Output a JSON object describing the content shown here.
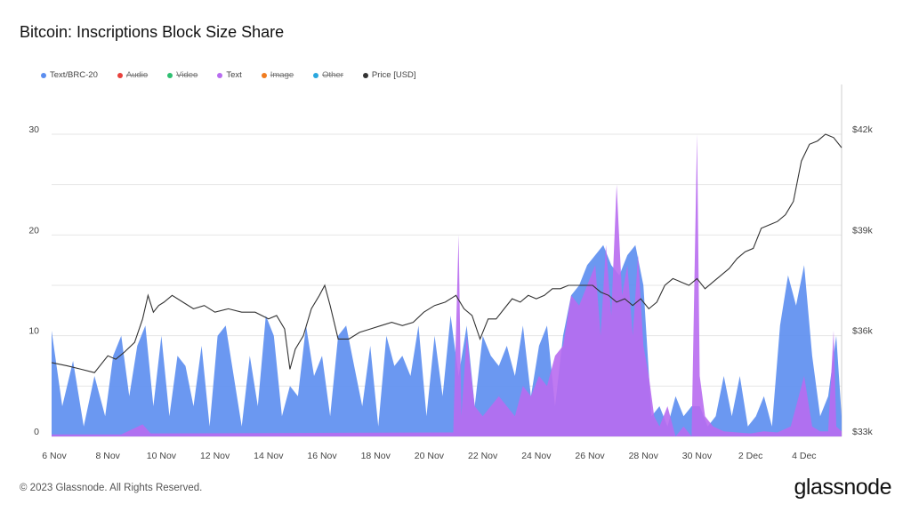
{
  "title": "Bitcoin: Inscriptions Block Size Share",
  "footer": "© 2023 Glassnode. All Rights Reserved.",
  "brand": "glassnode",
  "legend": [
    {
      "label": "Text/BRC-20",
      "color": "#5b8def",
      "enabled": true
    },
    {
      "label": "Audio",
      "color": "#e8413c",
      "enabled": false
    },
    {
      "label": "Video",
      "color": "#2fbf71",
      "enabled": false
    },
    {
      "label": "Text",
      "color": "#b86cf0",
      "enabled": true
    },
    {
      "label": "Image",
      "color": "#f07c1f",
      "enabled": false
    },
    {
      "label": "Other",
      "color": "#2aa7de",
      "enabled": false
    },
    {
      "label": "Price [USD]",
      "color": "#333333",
      "enabled": true
    }
  ],
  "chart_data": {
    "type": "area",
    "title": "Bitcoin: Inscriptions Block Size Share",
    "x_ticks": [
      "6 Nov",
      "8 Nov",
      "10 Nov",
      "12 Nov",
      "14 Nov",
      "16 Nov",
      "18 Nov",
      "20 Nov",
      "22 Nov",
      "24 Nov",
      "26 Nov",
      "28 Nov",
      "30 Nov",
      "2 Dec",
      "4 Dec"
    ],
    "y_left_ticks": [
      "0",
      "10",
      "20",
      "30"
    ],
    "y_right_ticks": [
      "$33k",
      "$36k",
      "$39k",
      "$42k"
    ],
    "ylim_left": [
      0,
      30
    ],
    "ylim_right": [
      33000,
      42000
    ],
    "grid": true,
    "legend_position": "top-left",
    "x_range_days": [
      5.9,
      35.4
    ],
    "series": [
      {
        "name": "Text/BRC-20",
        "axis": "left",
        "color": "#5b8def",
        "x": [
          5.9,
          6.3,
          6.7,
          7.1,
          7.5,
          7.9,
          8.2,
          8.5,
          8.8,
          9.1,
          9.4,
          9.7,
          10.0,
          10.3,
          10.6,
          10.9,
          11.2,
          11.5,
          11.8,
          12.1,
          12.4,
          12.7,
          13.0,
          13.3,
          13.6,
          13.9,
          14.2,
          14.5,
          14.8,
          15.1,
          15.4,
          15.7,
          16.0,
          16.3,
          16.6,
          16.9,
          17.2,
          17.5,
          17.8,
          18.1,
          18.4,
          18.7,
          19.0,
          19.3,
          19.6,
          19.9,
          20.2,
          20.5,
          20.8,
          21.1,
          21.4,
          21.7,
          22.0,
          22.3,
          22.6,
          22.9,
          23.2,
          23.5,
          23.8,
          24.1,
          24.4,
          24.7,
          25.0,
          25.3,
          25.6,
          25.9,
          26.2,
          26.5,
          26.8,
          27.1,
          27.4,
          27.7,
          28.0,
          28.3,
          28.6,
          28.9,
          29.2,
          29.5,
          29.8,
          30.1,
          30.4,
          30.7,
          31.0,
          31.3,
          31.6,
          31.9,
          32.2,
          32.5,
          32.8,
          33.1,
          33.4,
          33.7,
          34.0,
          34.3,
          34.6,
          34.9,
          35.2,
          35.4
        ],
        "values": [
          10.5,
          3,
          7.5,
          1,
          6,
          2,
          8,
          10,
          4,
          9,
          11,
          3,
          10,
          2,
          8,
          7,
          3,
          9,
          1,
          10,
          11,
          6,
          1,
          8,
          3,
          12,
          10,
          2,
          5,
          4,
          11,
          6,
          8,
          2,
          10,
          11,
          7,
          3,
          9,
          1,
          10,
          7,
          8,
          6,
          11,
          2,
          10,
          4,
          12,
          6,
          11,
          3,
          10,
          8,
          7,
          9,
          6,
          11,
          4,
          9,
          11,
          3,
          10,
          14,
          15,
          17,
          18,
          19,
          17,
          16,
          18,
          19,
          15,
          2,
          3,
          1,
          4,
          2,
          3,
          3,
          1,
          2,
          6,
          2,
          6,
          1,
          2,
          4,
          1,
          11,
          16,
          13,
          17,
          8,
          2,
          4,
          10,
          2
        ]
      },
      {
        "name": "Text",
        "axis": "left",
        "color": "#b86cf0",
        "x": [
          5.9,
          8.5,
          9.3,
          9.6,
          20.9,
          21.1,
          21.2,
          21.4,
          21.7,
          22.0,
          22.3,
          22.6,
          22.9,
          23.2,
          23.5,
          23.8,
          24.1,
          24.4,
          24.7,
          25.0,
          25.3,
          25.6,
          25.9,
          26.2,
          26.4,
          26.6,
          26.8,
          27.0,
          27.2,
          27.4,
          27.6,
          27.8,
          28.0,
          28.2,
          28.4,
          28.6,
          28.9,
          29.2,
          29.5,
          29.8,
          30.0,
          30.1,
          30.3,
          30.6,
          31.0,
          31.5,
          32.0,
          32.5,
          33.0,
          33.5,
          34.0,
          34.3,
          34.6,
          34.9,
          35.1,
          35.2,
          35.4
        ],
        "values": [
          0.2,
          0.2,
          1.2,
          0.3,
          0.4,
          20,
          2,
          10,
          3,
          2,
          3,
          4,
          3,
          2,
          5,
          4,
          6,
          5,
          8,
          9,
          14,
          13,
          15,
          17,
          10,
          19,
          12,
          25,
          14,
          17,
          10,
          18,
          9,
          6,
          2,
          1,
          3,
          0,
          1,
          0,
          30,
          6,
          2,
          1,
          0.5,
          0.4,
          0.3,
          0.5,
          0.4,
          1,
          6,
          1,
          0.5,
          0.5,
          10.5,
          1,
          0.5
        ]
      },
      {
        "name": "Price [USD]",
        "axis": "right",
        "color": "#333333",
        "x": [
          5.9,
          6.5,
          7.0,
          7.5,
          8.0,
          8.3,
          8.6,
          9.0,
          9.3,
          9.5,
          9.7,
          9.9,
          10.1,
          10.4,
          10.8,
          11.2,
          11.6,
          12.0,
          12.5,
          13.0,
          13.5,
          14.0,
          14.3,
          14.6,
          14.8,
          15.0,
          15.3,
          15.6,
          15.9,
          16.1,
          16.3,
          16.6,
          17.0,
          17.4,
          17.8,
          18.2,
          18.6,
          19.0,
          19.4,
          19.8,
          20.2,
          20.6,
          21.0,
          21.3,
          21.6,
          21.9,
          22.2,
          22.5,
          22.8,
          23.1,
          23.4,
          23.7,
          24.0,
          24.3,
          24.6,
          24.9,
          25.2,
          25.5,
          25.8,
          26.1,
          26.4,
          26.7,
          27.0,
          27.3,
          27.6,
          27.9,
          28.2,
          28.5,
          28.8,
          29.1,
          29.4,
          29.7,
          30.0,
          30.3,
          30.6,
          30.9,
          31.2,
          31.5,
          31.8,
          32.1,
          32.4,
          32.7,
          33.0,
          33.3,
          33.6,
          33.9,
          34.2,
          34.5,
          34.8,
          35.1,
          35.4
        ],
        "values": [
          35200,
          35100,
          35000,
          34900,
          35400,
          35300,
          35500,
          35800,
          36500,
          37200,
          36700,
          36900,
          37000,
          37200,
          37000,
          36800,
          36900,
          36700,
          36800,
          36700,
          36700,
          36500,
          36600,
          36200,
          35000,
          35600,
          36000,
          36800,
          37200,
          37500,
          36900,
          35900,
          35900,
          36100,
          36200,
          36300,
          36400,
          36300,
          36400,
          36700,
          36900,
          37000,
          37200,
          36800,
          36600,
          35900,
          36500,
          36500,
          36800,
          37100,
          37000,
          37200,
          37100,
          37200,
          37400,
          37400,
          37500,
          37500,
          37500,
          37500,
          37300,
          37200,
          37000,
          37100,
          36900,
          37100,
          36800,
          37000,
          37500,
          37700,
          37600,
          37500,
          37700,
          37400,
          37600,
          37800,
          38000,
          38300,
          38500,
          38600,
          39200,
          39300,
          39400,
          39600,
          40000,
          41200,
          41700,
          41800,
          42000,
          41900,
          41600
        ]
      }
    ]
  }
}
